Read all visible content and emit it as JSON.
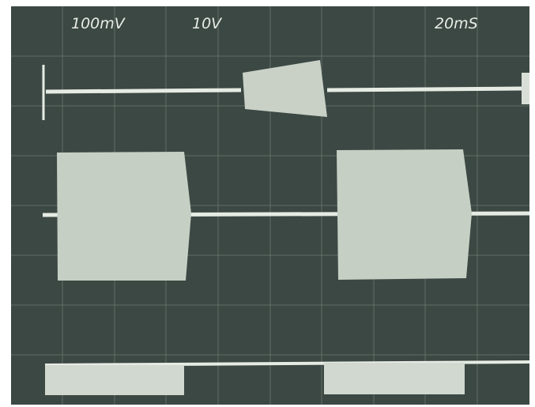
{
  "readouts": {
    "channel_1": "100mV",
    "channel_2": "10V",
    "timebase": "20mS"
  }
}
